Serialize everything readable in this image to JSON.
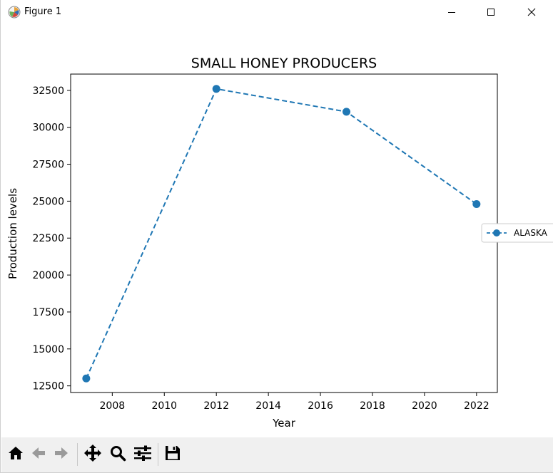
{
  "window": {
    "title": "Figure 1",
    "icon": "matplotlib-figure-icon",
    "controls": [
      "minimize-icon",
      "maximize-icon",
      "close-icon"
    ]
  },
  "toolbar": {
    "buttons": [
      {
        "name": "home",
        "icon": "home-icon"
      },
      {
        "name": "back",
        "icon": "arrow-left-icon"
      },
      {
        "name": "forward",
        "icon": "arrow-right-icon"
      },
      {
        "name": "pan",
        "icon": "move-icon"
      },
      {
        "name": "zoom",
        "icon": "magnifier-icon"
      },
      {
        "name": "configure-subplots",
        "icon": "sliders-icon"
      },
      {
        "name": "save",
        "icon": "floppy-disk-icon"
      }
    ]
  },
  "chart_data": {
    "type": "line",
    "title": "SMALL HONEY PRODUCERS",
    "xlabel": "Year",
    "ylabel": "Production levels",
    "xlim": [
      2006.4,
      2022.8
    ],
    "ylim": [
      12050,
      33600
    ],
    "xticks": [
      2008,
      2010,
      2012,
      2014,
      2016,
      2018,
      2020,
      2022
    ],
    "yticks": [
      12500,
      15000,
      17500,
      20000,
      22500,
      25000,
      27500,
      30000,
      32500
    ],
    "grid": false,
    "legend_position": "right (outside axes)",
    "series": [
      {
        "name": "ALASKA",
        "color": "#1f77b4",
        "linestyle": "dashed",
        "marker": "circle",
        "x": [
          2007,
          2012,
          2017,
          2022
        ],
        "y": [
          13000,
          32600,
          31050,
          24800
        ]
      }
    ]
  }
}
